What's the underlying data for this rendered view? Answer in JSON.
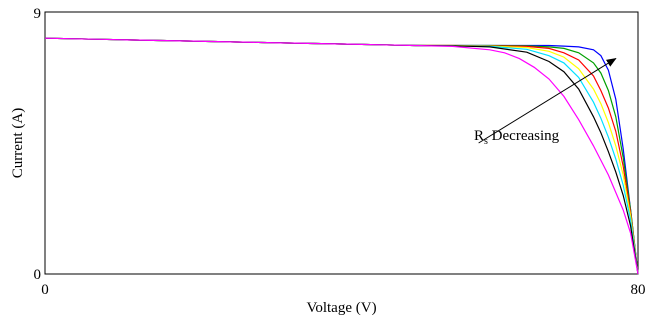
{
  "chart_data": {
    "type": "line",
    "xlabel": "Voltage (V)",
    "ylabel": "Current (A)",
    "xlim": [
      0,
      80
    ],
    "ylim": [
      0,
      9
    ],
    "x_tick_labels": [
      "0",
      "80"
    ],
    "y_tick_labels": [
      "0",
      "9"
    ],
    "grid": false,
    "annotation": {
      "text_main": "R",
      "text_sub": "s",
      "text_rest": " Decreasing",
      "arrow_from": [
        58.5,
        4.5
      ],
      "arrow_to": [
        77,
        7.4
      ]
    },
    "series": [
      {
        "color": "#0000ff",
        "x": [
          0,
          10,
          20,
          30,
          40,
          50,
          55,
          60,
          65,
          68,
          70,
          72,
          74,
          75,
          76,
          77,
          78,
          79,
          80
        ],
        "y": [
          8.1,
          8.05,
          8.0,
          7.95,
          7.9,
          7.85,
          7.85,
          7.85,
          7.85,
          7.85,
          7.83,
          7.8,
          7.7,
          7.5,
          7.0,
          6.0,
          4.3,
          2.2,
          0
        ]
      },
      {
        "color": "#00a000",
        "x": [
          0,
          10,
          20,
          30,
          40,
          50,
          55,
          60,
          65,
          68,
          70,
          72,
          74,
          75,
          76,
          77,
          78,
          79,
          80
        ],
        "y": [
          8.1,
          8.05,
          8.0,
          7.95,
          7.9,
          7.85,
          7.85,
          7.85,
          7.84,
          7.8,
          7.75,
          7.6,
          7.25,
          6.9,
          6.3,
          5.4,
          4.0,
          2.2,
          0
        ]
      },
      {
        "color": "#ff0000",
        "x": [
          0,
          10,
          20,
          30,
          40,
          50,
          55,
          60,
          65,
          68,
          70,
          72,
          74,
          75,
          76,
          77,
          78,
          79,
          80
        ],
        "y": [
          8.1,
          8.05,
          8.0,
          7.95,
          7.9,
          7.85,
          7.85,
          7.84,
          7.82,
          7.75,
          7.6,
          7.35,
          6.8,
          6.3,
          5.7,
          4.9,
          3.7,
          2.1,
          0
        ]
      },
      {
        "color": "#ffff00",
        "x": [
          0,
          10,
          20,
          30,
          40,
          50,
          55,
          60,
          65,
          68,
          70,
          72,
          74,
          75,
          76,
          77,
          78,
          79,
          80
        ],
        "y": [
          8.1,
          8.05,
          8.0,
          7.95,
          7.9,
          7.85,
          7.85,
          7.83,
          7.78,
          7.65,
          7.45,
          7.05,
          6.35,
          5.85,
          5.2,
          4.4,
          3.4,
          2.0,
          0
        ]
      },
      {
        "color": "#00e0ff",
        "x": [
          0,
          10,
          20,
          30,
          40,
          50,
          55,
          60,
          65,
          68,
          70,
          72,
          74,
          75,
          76,
          77,
          78,
          79,
          80
        ],
        "y": [
          8.1,
          8.05,
          8.0,
          7.95,
          7.9,
          7.85,
          7.84,
          7.82,
          7.72,
          7.5,
          7.25,
          6.75,
          5.9,
          5.35,
          4.7,
          3.95,
          3.05,
          1.85,
          0
        ]
      },
      {
        "color": "#000000",
        "x": [
          0,
          10,
          20,
          30,
          40,
          50,
          55,
          60,
          65,
          68,
          70,
          72,
          74,
          75,
          76,
          77,
          78,
          79,
          80
        ],
        "y": [
          8.1,
          8.05,
          8.0,
          7.95,
          7.9,
          7.85,
          7.84,
          7.8,
          7.62,
          7.3,
          6.95,
          6.35,
          5.4,
          4.85,
          4.2,
          3.5,
          2.7,
          1.65,
          0
        ]
      },
      {
        "color": "#ff00ff",
        "x": [
          0,
          10,
          20,
          30,
          40,
          50,
          55,
          60,
          62,
          64,
          66,
          68,
          70,
          72,
          74,
          76,
          78,
          79,
          80
        ],
        "y": [
          8.1,
          8.05,
          8.0,
          7.95,
          7.9,
          7.85,
          7.82,
          7.7,
          7.6,
          7.4,
          7.1,
          6.7,
          6.1,
          5.3,
          4.4,
          3.4,
          2.2,
          1.4,
          0
        ]
      }
    ]
  }
}
